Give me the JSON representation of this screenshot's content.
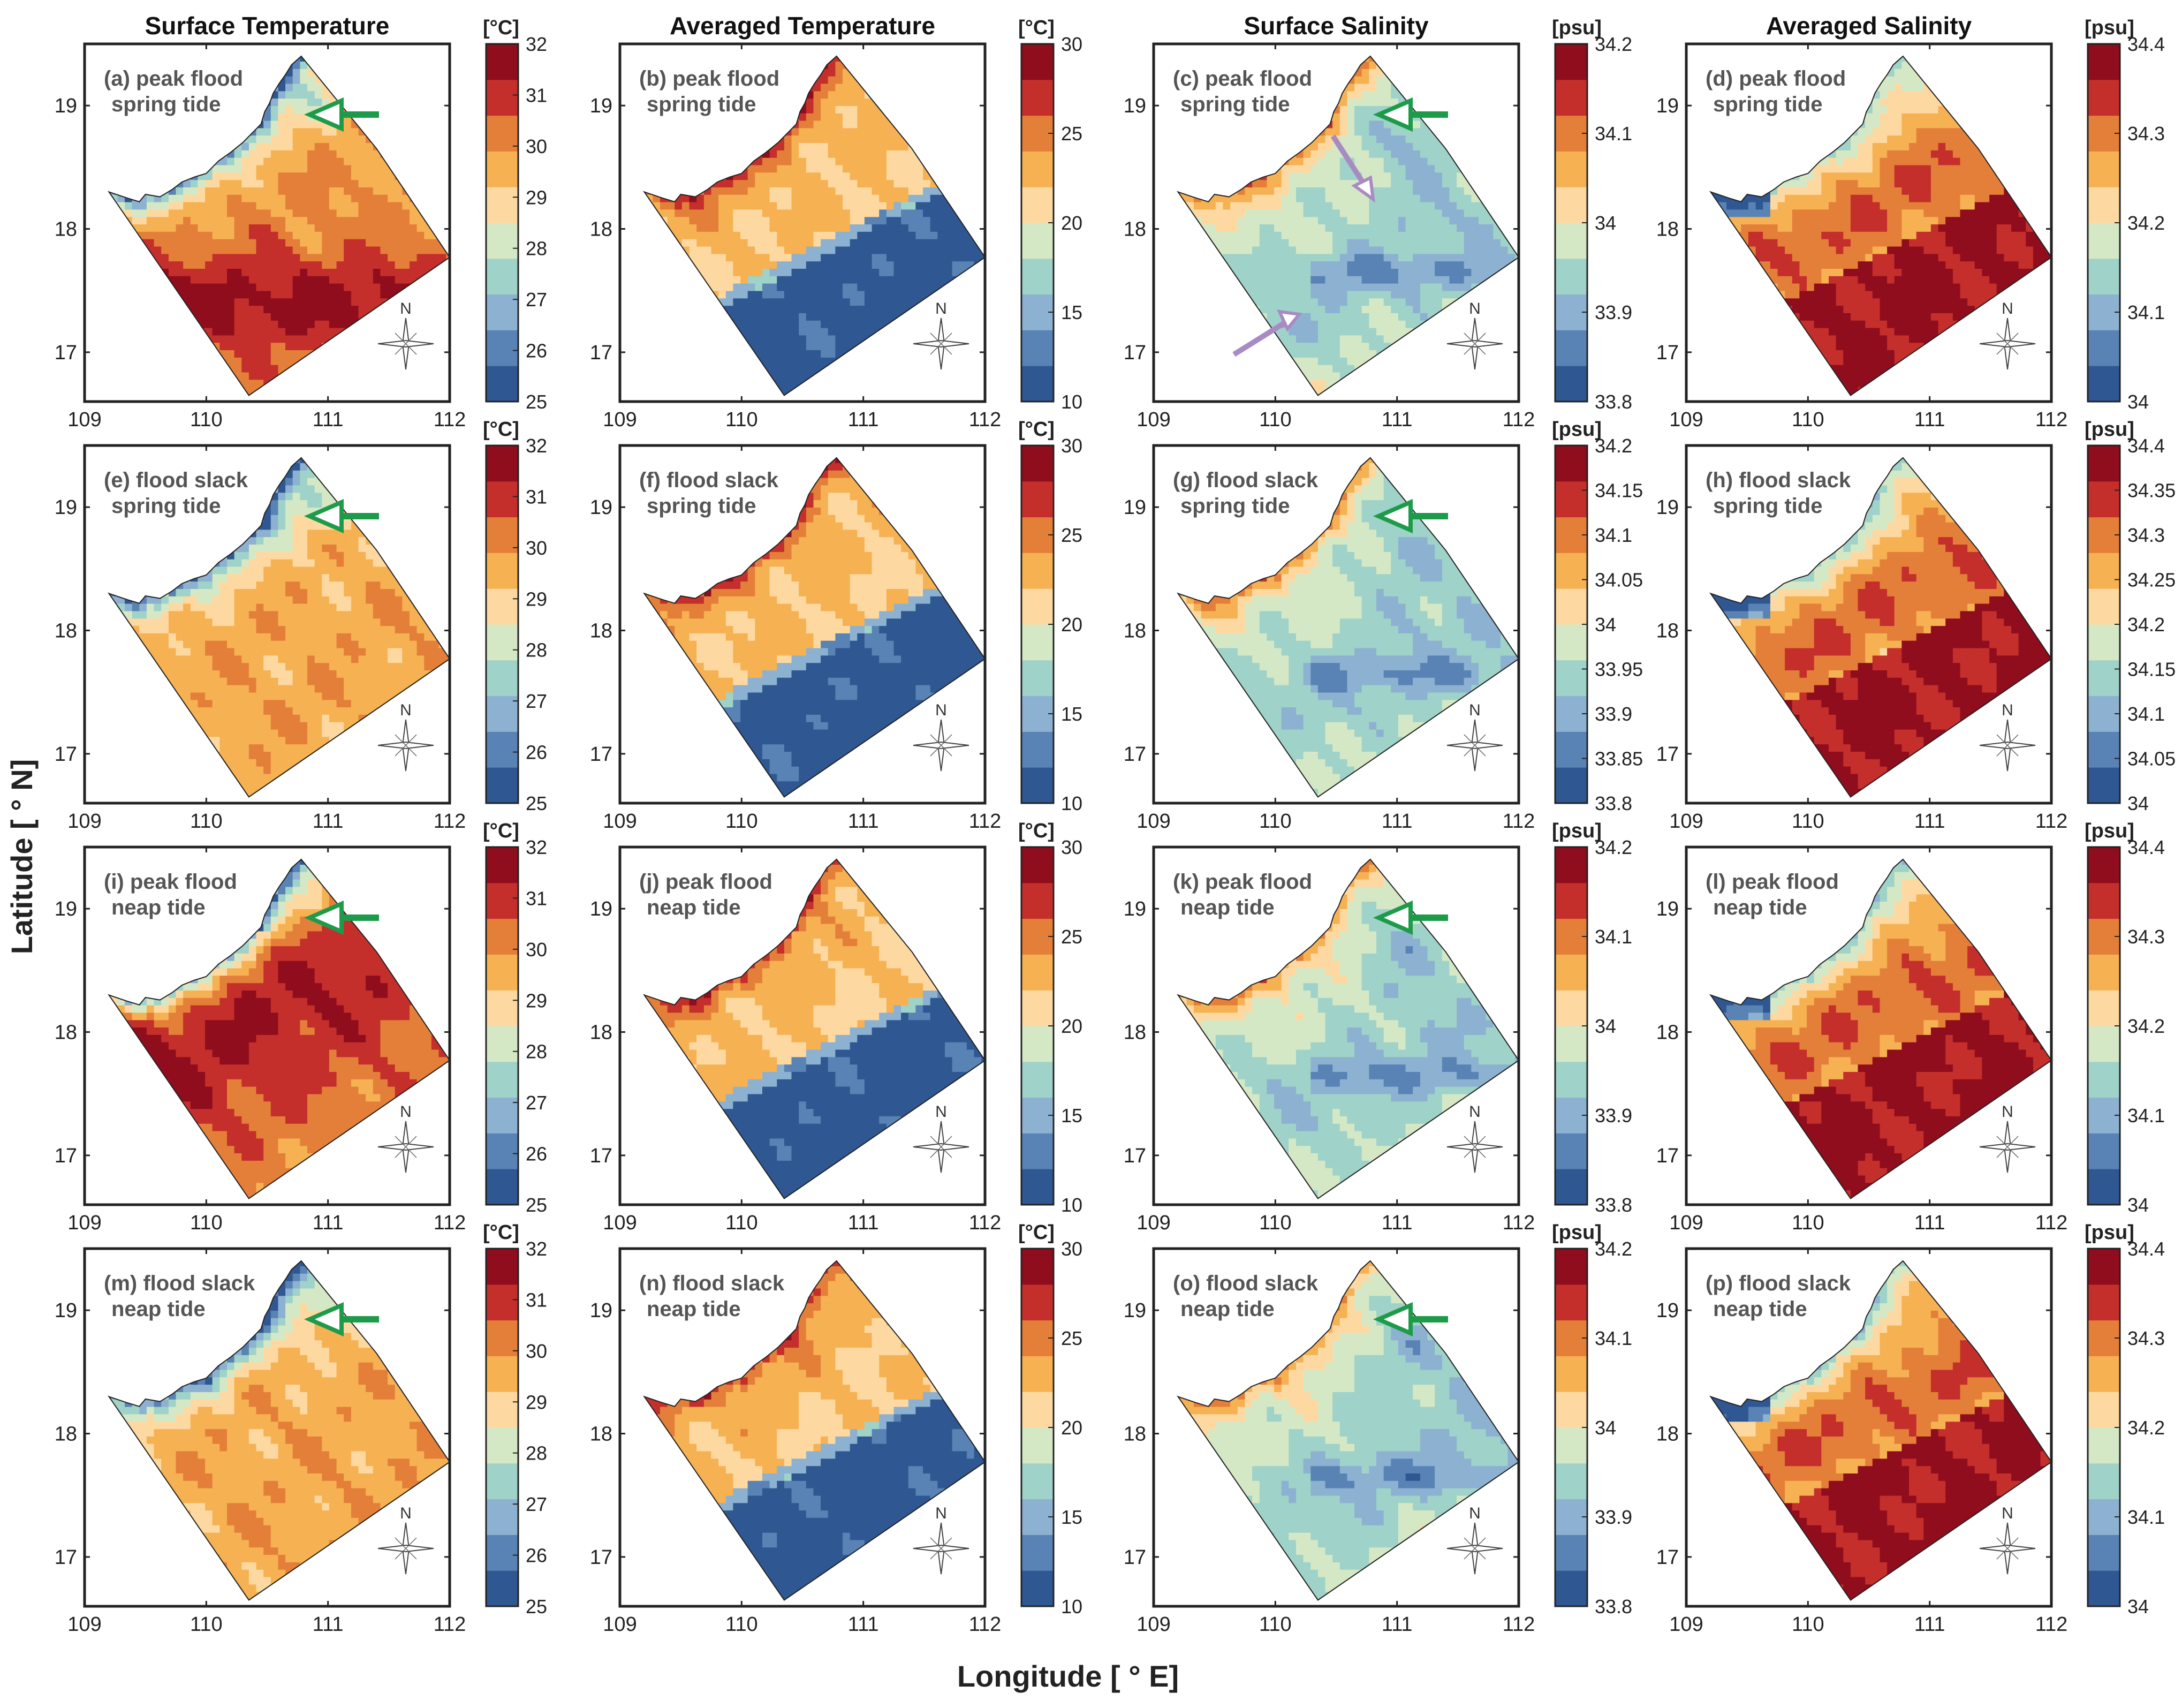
{
  "figure": {
    "ylabel": "Latitude [ ° N]",
    "xlabel": "Longitude [ ° E]"
  },
  "column_titles": [
    "Surface Temperature",
    "Averaged Temperature",
    "Surface Salinity",
    "Averaged Salinity"
  ],
  "colors": {
    "temperature_surface_scale": [
      "#2f5791",
      "#5883b4",
      "#8db1d1",
      "#9fd2c8",
      "#d5e8c6",
      "#fdd9a1",
      "#f6b153",
      "#e47f39",
      "#c42e2b",
      "#8f0d1d"
    ],
    "default_scale": [
      "#2f5791",
      "#5883b4",
      "#8db1d1",
      "#9fd2c8",
      "#d5e8c6",
      "#fdd9a1",
      "#f6b153",
      "#e47f39",
      "#c42e2b",
      "#8f0d1d"
    ],
    "land_stroke": "#333333",
    "green_arrow": "#1e9b4a",
    "purple_arrow": "#a98bc4"
  },
  "chart_data": [
    {
      "type": "heatmap",
      "panel": "(a)",
      "label_line1": "(a) peak flood",
      "label_line2": "spring tide",
      "variable": "Surface Temperature",
      "unit": "[°C]",
      "colorbar_ticks": [
        "25",
        "26",
        "27",
        "28",
        "29",
        "30",
        "31",
        "32"
      ],
      "x_ticks": [
        "109",
        "110",
        "111",
        "112"
      ],
      "y_ticks": [
        "17",
        "18",
        "19"
      ],
      "xlim": [
        109,
        112
      ],
      "ylim": [
        16.6,
        19.5
      ],
      "north_label": "N",
      "arrows": [
        "green"
      ]
    },
    {
      "type": "heatmap",
      "panel": "(b)",
      "label_line1": "(b) peak flood",
      "label_line2": "spring tide",
      "variable": "Averaged Temperature",
      "unit": "[°C]",
      "colorbar_ticks": [
        "10",
        "15",
        "20",
        "25",
        "30"
      ],
      "x_ticks": [
        "109",
        "110",
        "111",
        "112"
      ],
      "y_ticks": [
        "17",
        "18",
        "19"
      ],
      "xlim": [
        109,
        112
      ],
      "ylim": [
        16.6,
        19.5
      ],
      "north_label": "N",
      "arrows": []
    },
    {
      "type": "heatmap",
      "panel": "(c)",
      "label_line1": "(c) peak flood",
      "label_line2": "spring tide",
      "variable": "Surface Salinity",
      "unit": "[psu]",
      "colorbar_ticks": [
        "33.8",
        "33.9",
        "34",
        "34.1",
        "34.2"
      ],
      "x_ticks": [
        "109",
        "110",
        "111",
        "112"
      ],
      "y_ticks": [
        "17",
        "18",
        "19"
      ],
      "xlim": [
        109,
        112
      ],
      "ylim": [
        16.6,
        19.5
      ],
      "north_label": "N",
      "arrows": [
        "green",
        "purple"
      ]
    },
    {
      "type": "heatmap",
      "panel": "(d)",
      "label_line1": "(d) peak flood",
      "label_line2": "spring tide",
      "variable": "Averaged Salinity",
      "unit": "[psu]",
      "colorbar_ticks": [
        "34",
        "34.1",
        "34.2",
        "34.3",
        "34.4"
      ],
      "x_ticks": [
        "109",
        "110",
        "111",
        "112"
      ],
      "y_ticks": [
        "17",
        "18",
        "19"
      ],
      "xlim": [
        109,
        112
      ],
      "ylim": [
        16.6,
        19.5
      ],
      "north_label": "N",
      "arrows": []
    },
    {
      "type": "heatmap",
      "panel": "(e)",
      "label_line1": "(e) flood slack",
      "label_line2": "spring tide",
      "variable": "Surface Temperature",
      "unit": "[°C]",
      "colorbar_ticks": [
        "25",
        "26",
        "27",
        "28",
        "29",
        "30",
        "31",
        "32"
      ],
      "x_ticks": [
        "109",
        "110",
        "111",
        "112"
      ],
      "y_ticks": [
        "17",
        "18",
        "19"
      ],
      "xlim": [
        109,
        112
      ],
      "ylim": [
        16.6,
        19.5
      ],
      "north_label": "N",
      "arrows": [
        "green"
      ]
    },
    {
      "type": "heatmap",
      "panel": "(f)",
      "label_line1": "(f) flood slack",
      "label_line2": "spring tide",
      "variable": "Averaged Temperature",
      "unit": "[°C]",
      "colorbar_ticks": [
        "10",
        "15",
        "20",
        "25",
        "30"
      ],
      "x_ticks": [
        "109",
        "110",
        "111",
        "112"
      ],
      "y_ticks": [
        "17",
        "18",
        "19"
      ],
      "xlim": [
        109,
        112
      ],
      "ylim": [
        16.6,
        19.5
      ],
      "north_label": "N",
      "arrows": []
    },
    {
      "type": "heatmap",
      "panel": "(g)",
      "label_line1": "(g) flood slack",
      "label_line2": "spring tide",
      "variable": "Surface Salinity",
      "unit": "[psu]",
      "colorbar_ticks": [
        "33.8",
        "33.85",
        "33.9",
        "33.95",
        "34",
        "34.05",
        "34.1",
        "34.15",
        "34.2"
      ],
      "x_ticks": [
        "109",
        "110",
        "111",
        "112"
      ],
      "y_ticks": [
        "17",
        "18",
        "19"
      ],
      "xlim": [
        109,
        112
      ],
      "ylim": [
        16.6,
        19.5
      ],
      "north_label": "N",
      "arrows": [
        "green"
      ]
    },
    {
      "type": "heatmap",
      "panel": "(h)",
      "label_line1": "(h) flood slack",
      "label_line2": "spring tide",
      "variable": "Averaged Salinity",
      "unit": "[psu]",
      "colorbar_ticks": [
        "34",
        "34.05",
        "34.1",
        "34.15",
        "34.2",
        "34.25",
        "34.3",
        "34.35",
        "34.4"
      ],
      "x_ticks": [
        "109",
        "110",
        "111",
        "112"
      ],
      "y_ticks": [
        "17",
        "18",
        "19"
      ],
      "xlim": [
        109,
        112
      ],
      "ylim": [
        16.6,
        19.5
      ],
      "north_label": "N",
      "arrows": []
    },
    {
      "type": "heatmap",
      "panel": "(i)",
      "label_line1": "(i) peak flood",
      "label_line2": "neap tide",
      "variable": "Surface Temperature",
      "unit": "[°C]",
      "colorbar_ticks": [
        "25",
        "26",
        "27",
        "28",
        "29",
        "30",
        "31",
        "32"
      ],
      "x_ticks": [
        "109",
        "110",
        "111",
        "112"
      ],
      "y_ticks": [
        "17",
        "18",
        "19"
      ],
      "xlim": [
        109,
        112
      ],
      "ylim": [
        16.6,
        19.5
      ],
      "north_label": "N",
      "arrows": [
        "green"
      ]
    },
    {
      "type": "heatmap",
      "panel": "(j)",
      "label_line1": "(j) peak flood",
      "label_line2": "neap tide",
      "variable": "Averaged Temperature",
      "unit": "[°C]",
      "colorbar_ticks": [
        "10",
        "15",
        "20",
        "25",
        "30"
      ],
      "x_ticks": [
        "109",
        "110",
        "111",
        "112"
      ],
      "y_ticks": [
        "17",
        "18",
        "19"
      ],
      "xlim": [
        109,
        112
      ],
      "ylim": [
        16.6,
        19.5
      ],
      "north_label": "N",
      "arrows": []
    },
    {
      "type": "heatmap",
      "panel": "(k)",
      "label_line1": "(k) peak flood",
      "label_line2": "neap tide",
      "variable": "Surface Salinity",
      "unit": "[psu]",
      "colorbar_ticks": [
        "33.8",
        "33.9",
        "34",
        "34.1",
        "34.2"
      ],
      "x_ticks": [
        "109",
        "110",
        "111",
        "112"
      ],
      "y_ticks": [
        "17",
        "18",
        "19"
      ],
      "xlim": [
        109,
        112
      ],
      "ylim": [
        16.6,
        19.5
      ],
      "north_label": "N",
      "arrows": [
        "green"
      ]
    },
    {
      "type": "heatmap",
      "panel": "(l)",
      "label_line1": "(l) peak flood",
      "label_line2": "neap tide",
      "variable": "Averaged Salinity",
      "unit": "[psu]",
      "colorbar_ticks": [
        "34",
        "34.1",
        "34.2",
        "34.3",
        "34.4"
      ],
      "x_ticks": [
        "109",
        "110",
        "111",
        "112"
      ],
      "y_ticks": [
        "17",
        "18",
        "19"
      ],
      "xlim": [
        109,
        112
      ],
      "ylim": [
        16.6,
        19.5
      ],
      "north_label": "N",
      "arrows": []
    },
    {
      "type": "heatmap",
      "panel": "(m)",
      "label_line1": "(m) flood slack",
      "label_line2": "neap tide",
      "variable": "Surface Temperature",
      "unit": "[°C]",
      "colorbar_ticks": [
        "25",
        "26",
        "27",
        "28",
        "29",
        "30",
        "31",
        "32"
      ],
      "x_ticks": [
        "109",
        "110",
        "111",
        "112"
      ],
      "y_ticks": [
        "17",
        "18",
        "19"
      ],
      "xlim": [
        109,
        112
      ],
      "ylim": [
        16.6,
        19.5
      ],
      "north_label": "N",
      "arrows": [
        "green"
      ]
    },
    {
      "type": "heatmap",
      "panel": "(n)",
      "label_line1": "(n) flood slack",
      "label_line2": "neap tide",
      "variable": "Averaged Temperature",
      "unit": "[°C]",
      "colorbar_ticks": [
        "10",
        "15",
        "20",
        "25",
        "30"
      ],
      "x_ticks": [
        "109",
        "110",
        "111",
        "112"
      ],
      "y_ticks": [
        "17",
        "18",
        "19"
      ],
      "xlim": [
        109,
        112
      ],
      "ylim": [
        16.6,
        19.5
      ],
      "north_label": "N",
      "arrows": []
    },
    {
      "type": "heatmap",
      "panel": "(o)",
      "label_line1": "(o) flood slack",
      "label_line2": "neap tide",
      "variable": "Surface Salinity",
      "unit": "[psu]",
      "colorbar_ticks": [
        "33.8",
        "33.9",
        "34",
        "34.1",
        "34.2"
      ],
      "x_ticks": [
        "109",
        "110",
        "111",
        "112"
      ],
      "y_ticks": [
        "17",
        "18",
        "19"
      ],
      "xlim": [
        109,
        112
      ],
      "ylim": [
        16.6,
        19.5
      ],
      "north_label": "N",
      "arrows": [
        "green"
      ]
    },
    {
      "type": "heatmap",
      "panel": "(p)",
      "label_line1": "(p) flood slack",
      "label_line2": "neap tide",
      "variable": "Averaged Salinity",
      "unit": "[psu]",
      "colorbar_ticks": [
        "34",
        "34.1",
        "34.2",
        "34.3",
        "34.4"
      ],
      "x_ticks": [
        "109",
        "110",
        "111",
        "112"
      ],
      "y_ticks": [
        "17",
        "18",
        "19"
      ],
      "xlim": [
        109,
        112
      ],
      "ylim": [
        16.6,
        19.5
      ],
      "north_label": "N",
      "arrows": []
    }
  ]
}
